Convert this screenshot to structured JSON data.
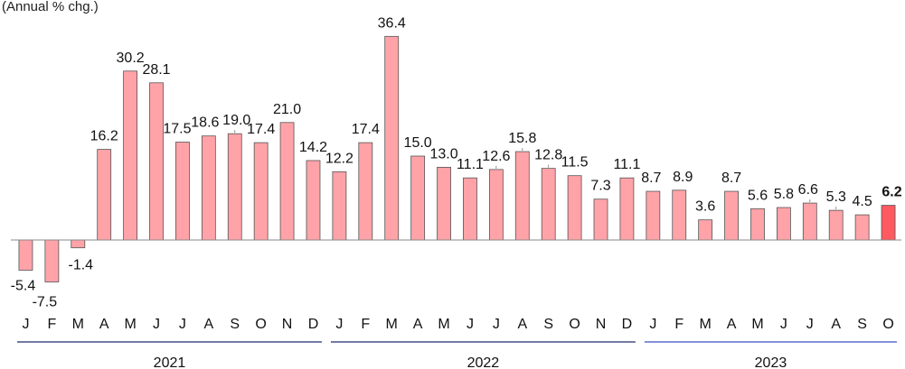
{
  "chart_data": {
    "type": "bar",
    "unit_label": "(Annual % chg.)",
    "categories": [
      "J",
      "F",
      "M",
      "A",
      "M",
      "J",
      "J",
      "A",
      "S",
      "O",
      "N",
      "D",
      "J",
      "F",
      "M",
      "A",
      "M",
      "J",
      "J",
      "A",
      "S",
      "O",
      "N",
      "D",
      "J",
      "F",
      "M",
      "A",
      "M",
      "J",
      "J",
      "A",
      "S",
      "O"
    ],
    "values": [
      -5.4,
      -7.5,
      -1.4,
      16.2,
      30.2,
      28.1,
      17.5,
      18.6,
      19.0,
      17.4,
      21.0,
      14.2,
      12.2,
      17.4,
      36.4,
      15.0,
      13.0,
      11.1,
      12.6,
      15.8,
      12.8,
      11.5,
      7.3,
      11.1,
      8.7,
      8.9,
      3.6,
      8.7,
      5.6,
      5.8,
      6.6,
      5.3,
      4.5,
      6.2
    ],
    "data_labels": [
      "-5.4",
      "-7.5",
      "-1.4",
      "16.2",
      "30.2",
      "28.1",
      "17.5",
      "18.6",
      "19.0",
      "17.4",
      "21.0",
      "14.2",
      "12.2",
      "17.4",
      "36.4",
      "15.0",
      "13.0",
      "11.1",
      "12.6",
      "15.8",
      "12.8",
      "11.5",
      "7.3",
      "11.1",
      "8.7",
      "8.9",
      "3.6",
      "8.7",
      "5.6",
      "5.8",
      "6.6",
      "5.3",
      "4.5",
      "6.2"
    ],
    "years": [
      {
        "label": "2021",
        "start": 0,
        "end": 11
      },
      {
        "label": "2022",
        "start": 12,
        "end": 23
      },
      {
        "label": "2023",
        "start": 24,
        "end": 33
      }
    ],
    "highlight_index": 33,
    "ylim": [
      -9,
      37
    ],
    "grid": false,
    "colors": {
      "bar": "#ffa3a8",
      "bar_highlight": "#ff5a5f",
      "bar_stroke": "#555555",
      "year_rule_2021": "#1f2a6d",
      "year_rule_2022": "#1f2a6d",
      "year_rule_2023": "#3b4fc6"
    }
  }
}
